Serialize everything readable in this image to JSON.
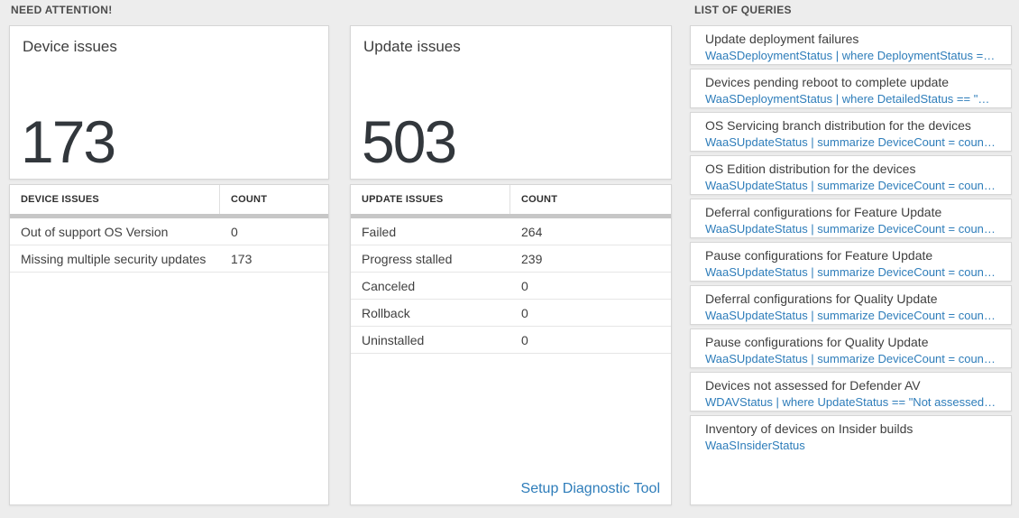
{
  "colors": {
    "accent_blue": "#2e7dba",
    "page_background": "#ededed",
    "big_number": "#32373c",
    "scrollbar_gray": "#c7c7c7"
  },
  "sections": {
    "need_attention": {
      "title": "NEED ATTENTION!"
    },
    "queries": {
      "title": "LIST OF QUERIES"
    }
  },
  "device_card": {
    "label": "Device issues",
    "value": "173"
  },
  "update_card": {
    "label": "Update issues",
    "value": "503"
  },
  "device_table": {
    "headers": [
      "DEVICE ISSUES",
      "COUNT"
    ],
    "rows": [
      {
        "name": "Out of support OS Version",
        "count": "0"
      },
      {
        "name": "Missing multiple security updates",
        "count": "173"
      }
    ]
  },
  "update_table": {
    "headers": [
      "UPDATE ISSUES",
      "COUNT"
    ],
    "rows": [
      {
        "name": "Failed",
        "count": "264"
      },
      {
        "name": "Progress stalled",
        "count": "239"
      },
      {
        "name": "Canceled",
        "count": "0"
      },
      {
        "name": "Rollback",
        "count": "0"
      },
      {
        "name": "Uninstalled",
        "count": "0"
      }
    ],
    "link": "Setup Diagnostic Tool"
  },
  "query_list": [
    {
      "title": "Update deployment failures",
      "query": "WaaSDeploymentStatus | where DeploymentStatus == \"Failed\" |..."
    },
    {
      "title": "Devices pending reboot to complete update",
      "query": "WaaSDeploymentStatus | where DetailedStatus == \"Reboot pend..."
    },
    {
      "title": "OS Servicing branch distribution for the devices",
      "query": "WaaSUpdateStatus | summarize DeviceCount = count() by OSSer..."
    },
    {
      "title": "OS Edition distribution for the devices",
      "query": "WaaSUpdateStatus | summarize DeviceCount = count() by OSEdit..."
    },
    {
      "title": "Deferral configurations for Feature Update",
      "query": "WaaSUpdateStatus | summarize DeviceCount = count() by Featur..."
    },
    {
      "title": "Pause configurations for Feature Update",
      "query": "WaaSUpdateStatus | summarize DeviceCount = count() by Featur..."
    },
    {
      "title": "Deferral configurations for Quality Update",
      "query": "WaaSUpdateStatus | summarize DeviceCount = count() by Qualit..."
    },
    {
      "title": "Pause configurations for Quality Update",
      "query": "WaaSUpdateStatus | summarize DeviceCount = count() by Qualit..."
    },
    {
      "title": "Devices not assessed for Defender AV",
      "query": "WDAVStatus | where UpdateStatus == \"Not assessed\" | render ta..."
    },
    {
      "title": "Inventory of devices on Insider builds",
      "query": "WaaSInsiderStatus"
    }
  ]
}
